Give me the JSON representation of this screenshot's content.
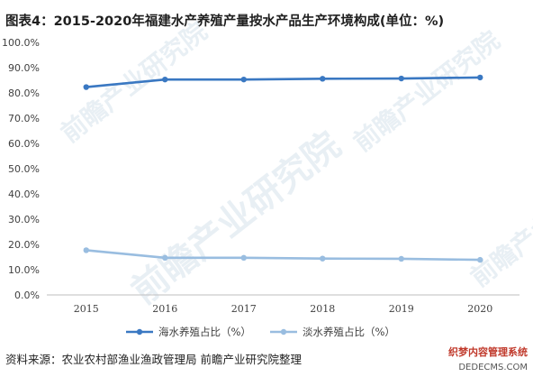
{
  "watermark_text": "前瞻产业研究院",
  "source": "资料来源：农业农村部渔业渔政管理局 前瞻产业研究院整理",
  "corner_mark": {
    "line1": "织梦内容管理系统",
    "line2": "DEDECMS.COM"
  },
  "colors": {
    "sea": "#3a78c2",
    "fresh": "#99bde0",
    "axis": "#bfbfbf",
    "text": "#404040"
  },
  "chart_data": {
    "type": "line",
    "title": "图表4：2015-2020年福建水产养殖产量按水产品生产环境构成(单位：%)",
    "categories": [
      "2015",
      "2016",
      "2017",
      "2018",
      "2019",
      "2020"
    ],
    "series": [
      {
        "name": "海水养殖占比（%）",
        "values": [
          82.3,
          85.3,
          85.3,
          85.6,
          85.7,
          86.1
        ]
      },
      {
        "name": "淡水养殖占比（%）",
        "values": [
          17.7,
          14.7,
          14.7,
          14.4,
          14.3,
          13.9
        ]
      }
    ],
    "ylim": [
      0,
      100
    ],
    "yticks": [
      "0.0%",
      "10.0%",
      "20.0%",
      "30.0%",
      "40.0%",
      "50.0%",
      "60.0%",
      "70.0%",
      "80.0%",
      "90.0%",
      "100.0%"
    ],
    "xlabel": "",
    "ylabel": "",
    "grid": false,
    "legend": "bottom"
  }
}
